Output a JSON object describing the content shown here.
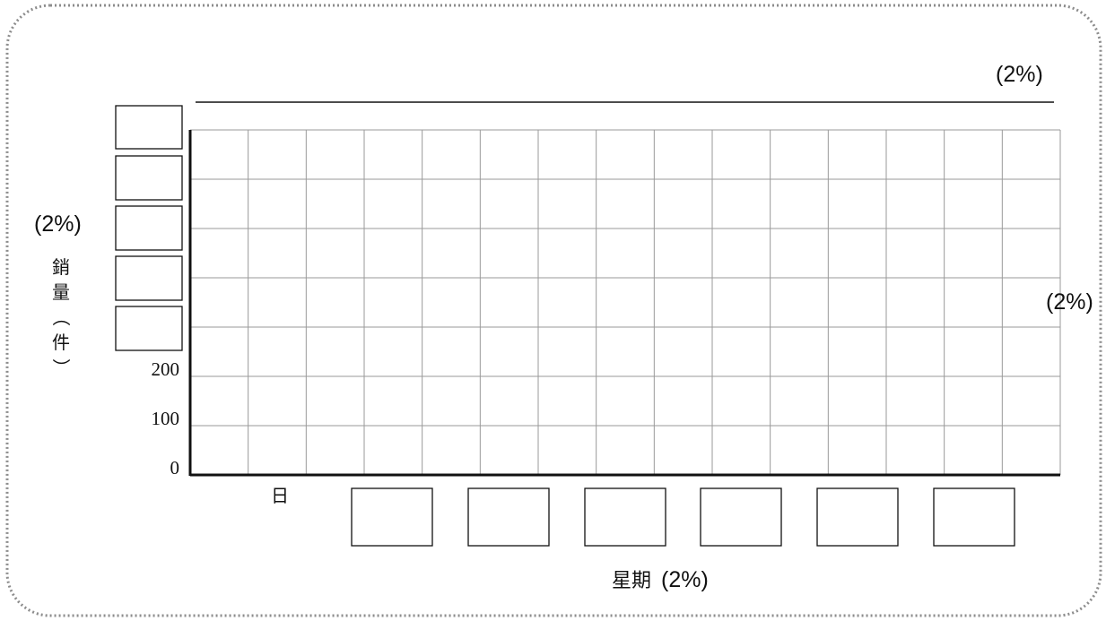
{
  "chart_data": {
    "type": "bar",
    "title": "",
    "xlabel": "星期",
    "ylabel": "銷量（件）",
    "categories": [
      "日",
      "",
      "",
      "",
      "",
      "",
      ""
    ],
    "y_tick_labels": [
      "0",
      "100",
      "200",
      "",
      "",
      "",
      "",
      ""
    ],
    "ylim": [
      0,
      700
    ],
    "y_step": 100,
    "grid": true,
    "series": []
  },
  "marks": {
    "title_marks": "(2%)",
    "y_axis_marks": "(2%)",
    "right_marks": "(2%)",
    "x_axis_marks": "(2%)"
  },
  "colors": {
    "frame": "#8c8c8c",
    "grid": "#9a9a9a",
    "axis": "#111111"
  }
}
